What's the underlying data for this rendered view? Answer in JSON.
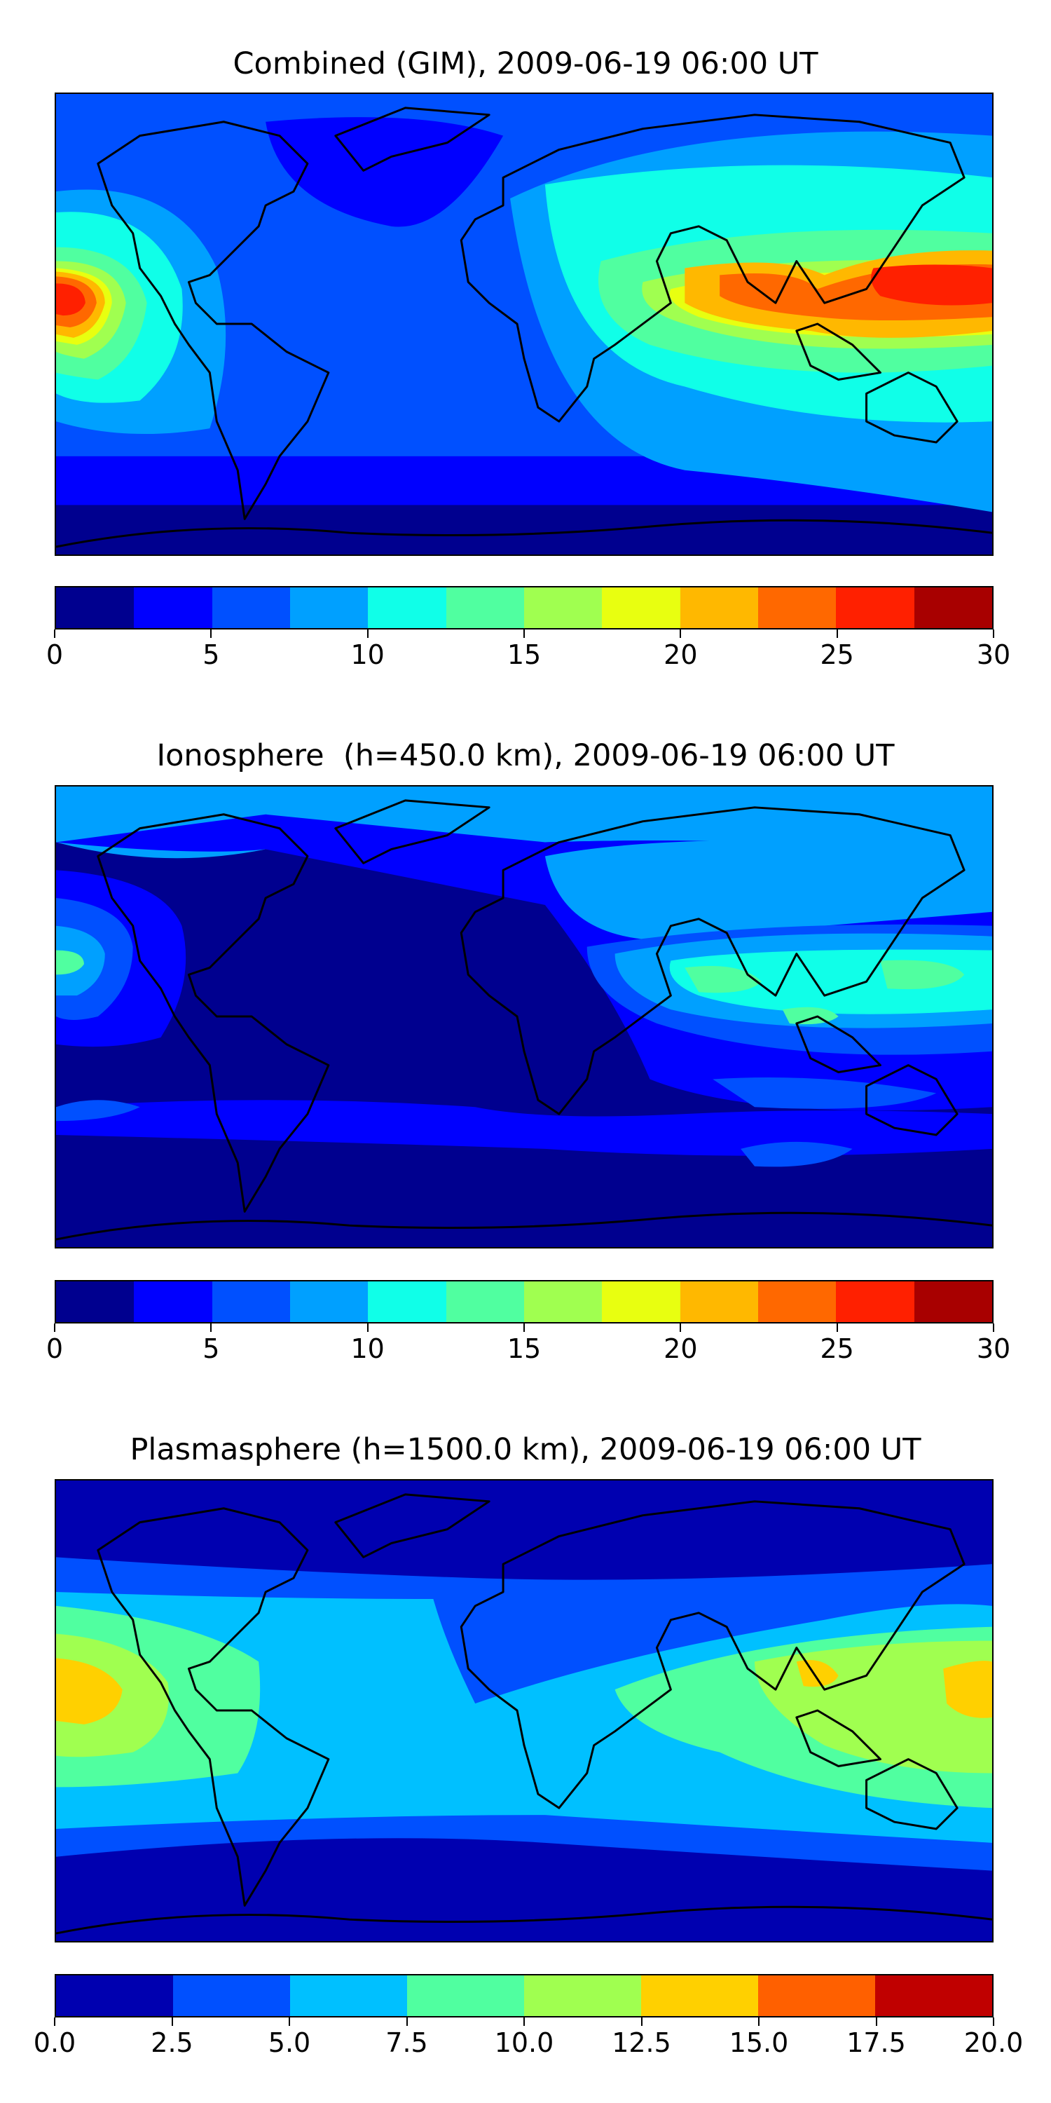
{
  "panels": [
    {
      "title": "Combined (GIM), 2009-06-19 06:00 UT",
      "colorbar": {
        "colors": [
          "#00008f",
          "#0000ff",
          "#0050ff",
          "#00a0ff",
          "#10ffe8",
          "#50ffa0",
          "#a0ff50",
          "#e8ff10",
          "#ffb800",
          "#ff6800",
          "#ff2000",
          "#a80000"
        ],
        "ticks": [
          "0",
          "5",
          "10",
          "15",
          "20",
          "25",
          "30"
        ],
        "range": [
          0,
          30
        ]
      }
    },
    {
      "title": "Ionosphere  (h=450.0 km), 2009-06-19 06:00 UT",
      "colorbar": {
        "colors": [
          "#00008f",
          "#0000ff",
          "#0050ff",
          "#00a0ff",
          "#10ffe8",
          "#50ffa0",
          "#a0ff50",
          "#e8ff10",
          "#ffb800",
          "#ff6800",
          "#ff2000",
          "#a80000"
        ],
        "ticks": [
          "0",
          "5",
          "10",
          "15",
          "20",
          "25",
          "30"
        ],
        "range": [
          0,
          30
        ]
      }
    },
    {
      "title": "Plasmasphere (h=1500.0 km), 2009-06-19 06:00 UT",
      "colorbar": {
        "colors": [
          "#0000b0",
          "#0050ff",
          "#00c0ff",
          "#50ffa0",
          "#a0ff50",
          "#ffd000",
          "#ff6000",
          "#c00000"
        ],
        "ticks": [
          "0.0",
          "2.5",
          "5.0",
          "7.5",
          "10.0",
          "12.5",
          "15.0",
          "17.5",
          "20.0"
        ],
        "range": [
          0,
          20
        ]
      }
    }
  ]
}
